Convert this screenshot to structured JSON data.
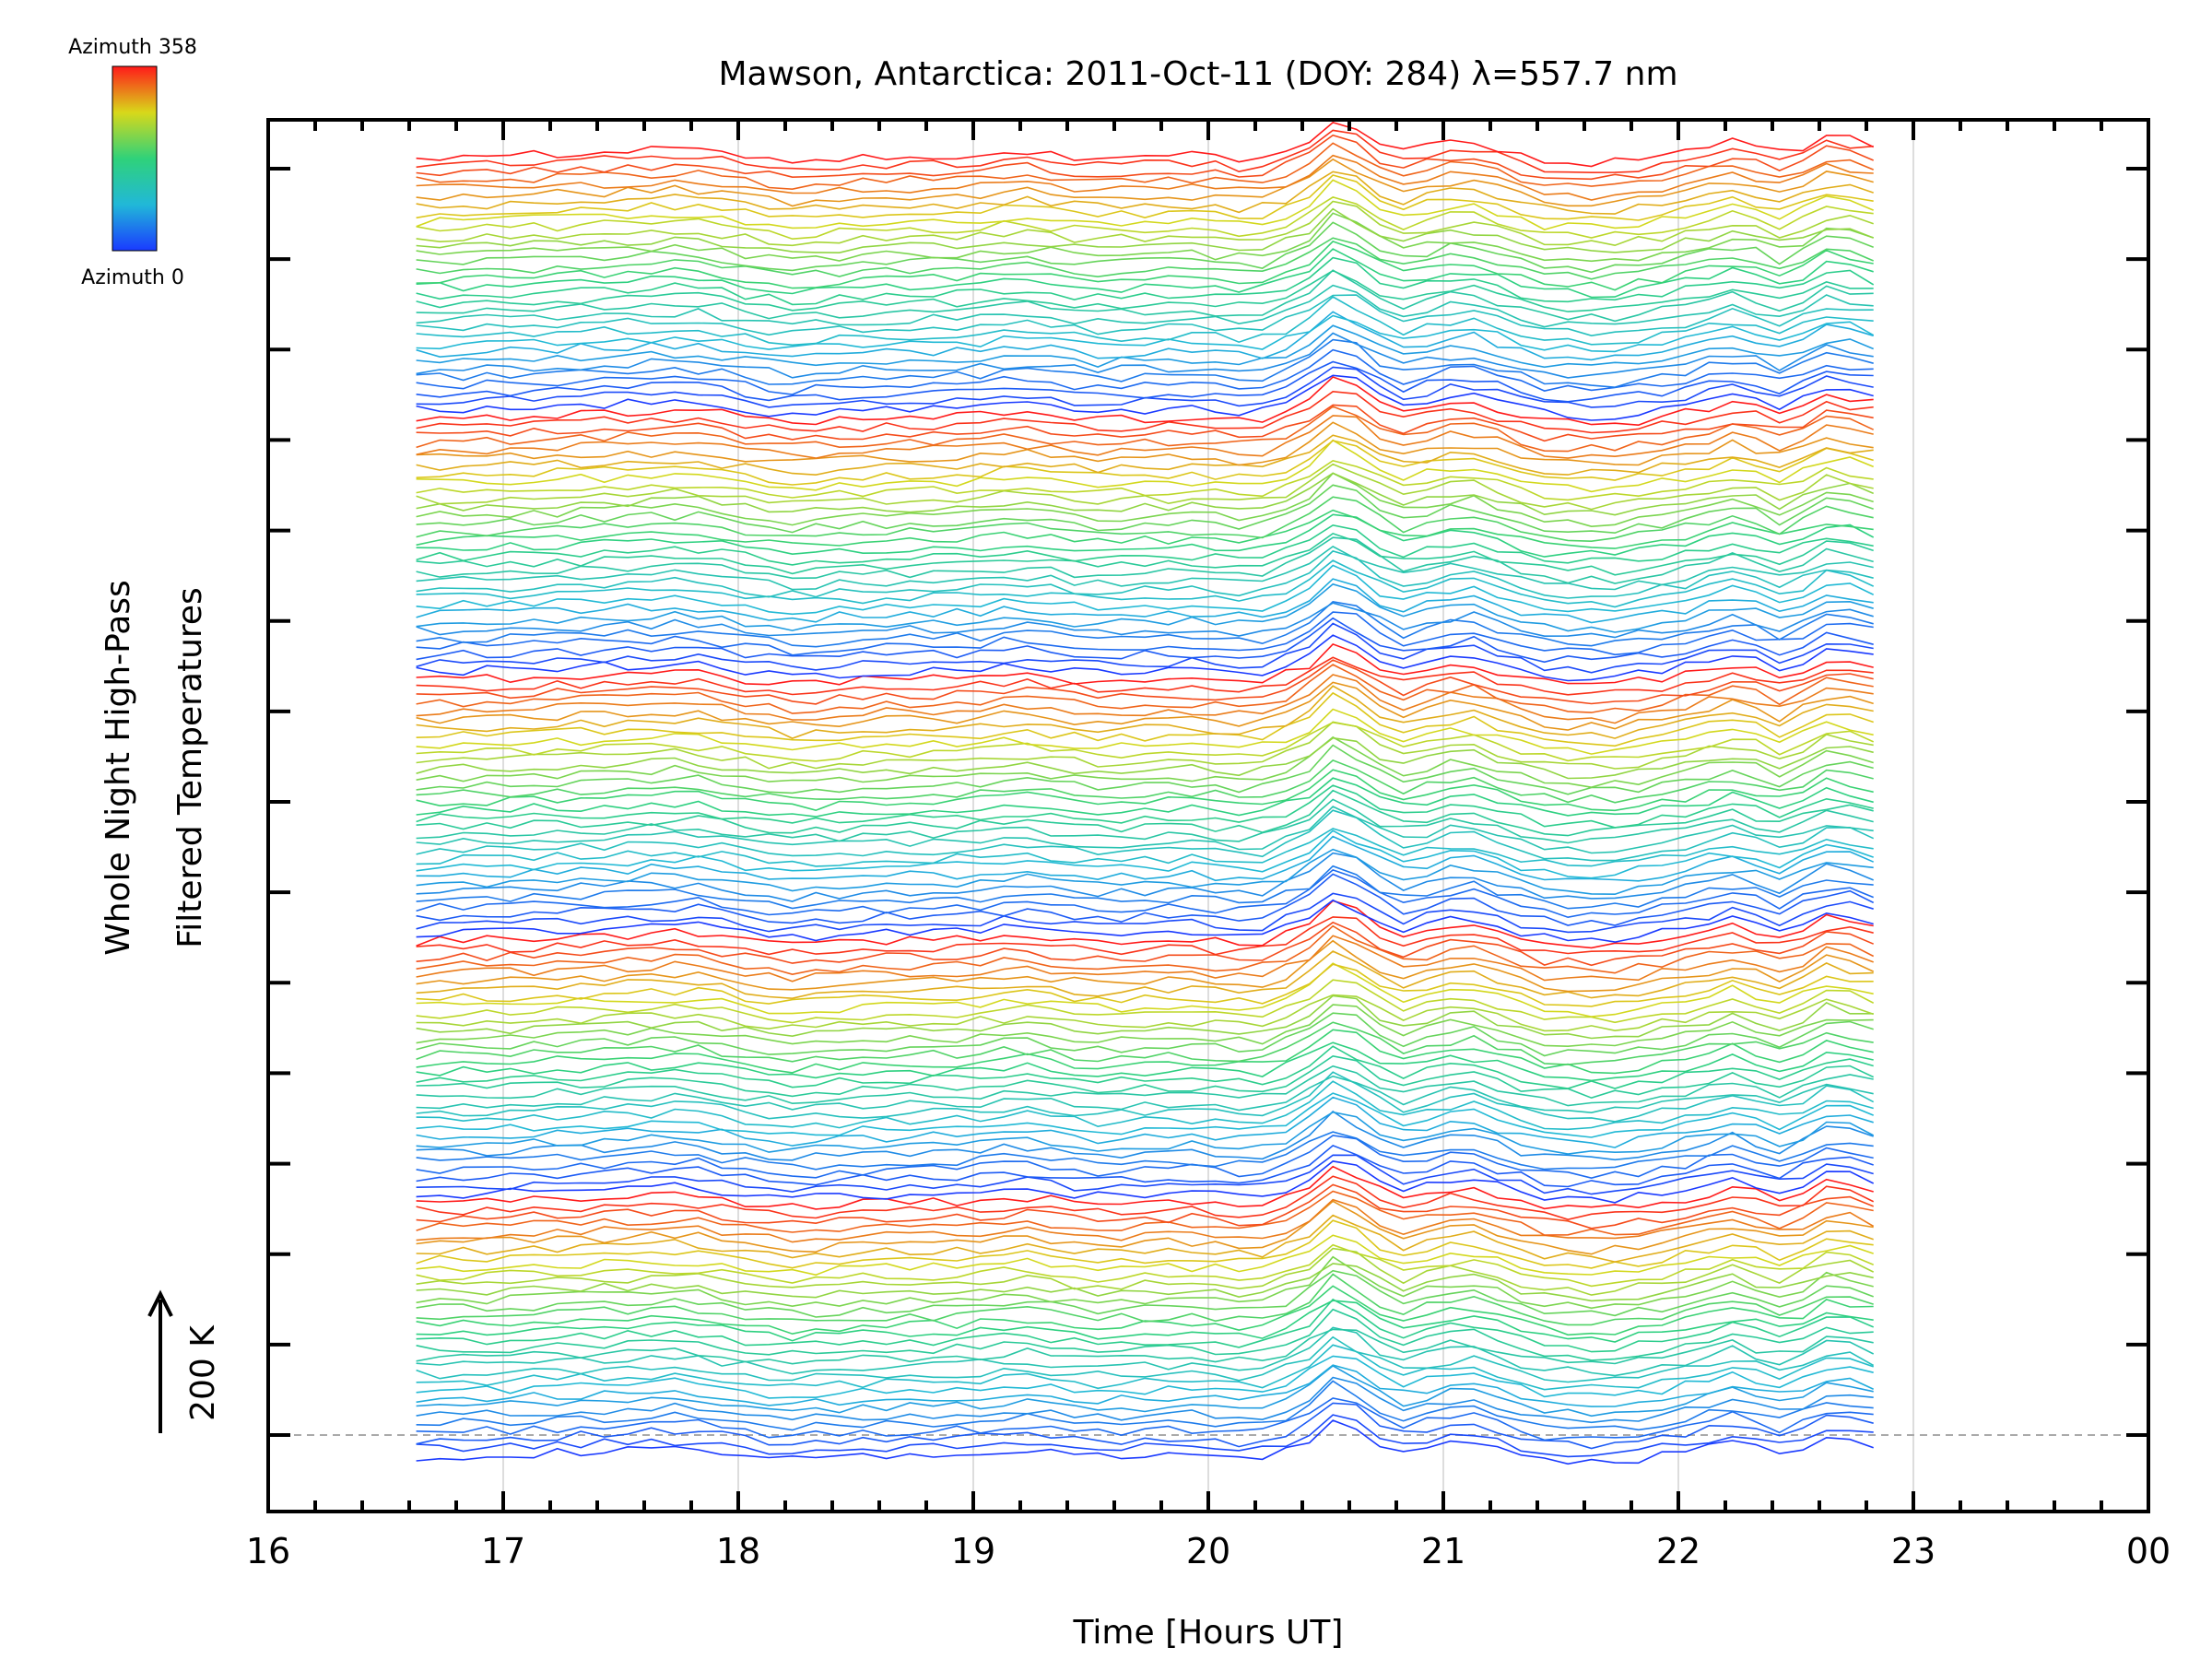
{
  "chart_data": {
    "type": "line",
    "title": "Mawson, Antarctica: 2011-Oct-11 (DOY: 284) λ=557.7 nm",
    "xlabel": "Time [Hours UT]",
    "ylabel_line1": "Whole Night High-Pass",
    "ylabel_line2": "Filtered Temperatures",
    "scale_label": "200 K",
    "xlim": [
      16,
      24
    ],
    "x_tick_labels": [
      "16",
      "17",
      "18",
      "19",
      "20",
      "21",
      "22",
      "23",
      "00"
    ],
    "x_gridlines": [
      17,
      18,
      19,
      20,
      21,
      22,
      23
    ],
    "y_ticks_count": 15,
    "grid": true,
    "colorbar": {
      "top_label": "Azimuth 358",
      "bottom_label": "Azimuth 0"
    },
    "colors": {
      "azimuth_low": "#1a3aff",
      "azimuth_mid": "#2fd27a",
      "azimuth_high": "#ff1a1a"
    },
    "series_description": "Stacked high-pass filtered temperature traces, one per azimuth, colored by azimuth from 0 (blue) to 358 (red); repeated azimuth sweeps stacked vertically.",
    "series_count": 160,
    "azimuth_cycle": 32,
    "time_start": 16.63,
    "time_end": 22.9,
    "time_step": 0.1,
    "common_pattern": [
      {
        "t": 16.63,
        "v": 0
      },
      {
        "t": 17.0,
        "v": 2
      },
      {
        "t": 17.4,
        "v": 6
      },
      {
        "t": 17.8,
        "v": 10
      },
      {
        "t": 18.2,
        "v": -6
      },
      {
        "t": 18.6,
        "v": 0
      },
      {
        "t": 19.0,
        "v": 2
      },
      {
        "t": 19.2,
        "v": 8
      },
      {
        "t": 19.5,
        "v": -2
      },
      {
        "t": 19.9,
        "v": 2
      },
      {
        "t": 20.2,
        "v": -4
      },
      {
        "t": 20.4,
        "v": 14
      },
      {
        "t": 20.55,
        "v": 48
      },
      {
        "t": 20.8,
        "v": 4
      },
      {
        "t": 21.1,
        "v": 22
      },
      {
        "t": 21.4,
        "v": -4
      },
      {
        "t": 21.7,
        "v": -8
      },
      {
        "t": 22.0,
        "v": 4
      },
      {
        "t": 22.25,
        "v": 20
      },
      {
        "t": 22.45,
        "v": 2
      },
      {
        "t": 22.65,
        "v": 30
      },
      {
        "t": 22.9,
        "v": 12
      }
    ]
  }
}
